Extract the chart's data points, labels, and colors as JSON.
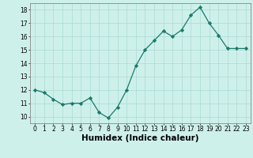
{
  "x": [
    0,
    1,
    2,
    3,
    4,
    5,
    6,
    7,
    8,
    9,
    10,
    11,
    12,
    13,
    14,
    15,
    16,
    17,
    18,
    19,
    20,
    21,
    22,
    23
  ],
  "y": [
    12.0,
    11.8,
    11.3,
    10.9,
    11.0,
    11.0,
    11.4,
    10.3,
    9.9,
    10.7,
    12.0,
    13.8,
    15.0,
    15.7,
    16.4,
    16.0,
    16.5,
    17.6,
    18.2,
    17.0,
    16.1,
    15.1,
    15.1,
    15.1
  ],
  "line_color": "#1a7a6a",
  "marker": "D",
  "marker_size": 2.2,
  "bg_color": "#cef0eb",
  "grid_color": "#b0ddd8",
  "xlabel": "Humidex (Indice chaleur)",
  "ylabel": "",
  "xlim": [
    -0.5,
    23.5
  ],
  "ylim": [
    9.5,
    18.5
  ],
  "yticks": [
    10,
    11,
    12,
    13,
    14,
    15,
    16,
    17,
    18
  ],
  "xticks": [
    0,
    1,
    2,
    3,
    4,
    5,
    6,
    7,
    8,
    9,
    10,
    11,
    12,
    13,
    14,
    15,
    16,
    17,
    18,
    19,
    20,
    21,
    22,
    23
  ],
  "tick_fontsize": 5.5,
  "xlabel_fontsize": 7.5,
  "spine_color": "#888888"
}
